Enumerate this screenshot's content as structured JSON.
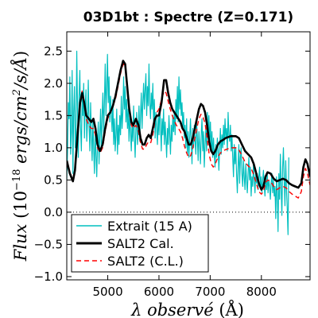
{
  "chart_data": {
    "type": "line",
    "title": "03D1bt : Spectre (Z=0.171)",
    "xlabel_parts": [
      "λ ",
      "observé",
      " (Å)"
    ],
    "ylabel_parts": [
      "Flux ",
      "(10",
      "−18",
      " ",
      "ergs/cm",
      "2",
      "/s/Å",
      ")"
    ],
    "xlim": [
      4200,
      8950
    ],
    "ylim": [
      -1.05,
      2.8
    ],
    "xticks": [
      5000,
      6000,
      7000,
      8000
    ],
    "yticks": [
      -1.0,
      -0.5,
      0.0,
      0.5,
      1.0,
      1.5,
      2.0,
      2.5
    ],
    "ytick_labels": [
      "−1.0",
      "−0.5",
      "0.0",
      "0.5",
      "1.0",
      "1.5",
      "2.0",
      "2.5"
    ],
    "zero_line": {
      "y": 0.0,
      "style": "dotted",
      "color": "#000000"
    },
    "legend": {
      "placement": "lower-left",
      "entries": [
        {
          "label": "Extrait (15 A)",
          "color": "#00bfbf",
          "style": "solid"
        },
        {
          "label": "SALT2 Cal.",
          "color": "#000000",
          "style": "solid-thick"
        },
        {
          "label": "SALT2 (C.L.)",
          "color": "#ff0000",
          "style": "dashed"
        }
      ]
    },
    "series": [
      {
        "name": "Extrait (15 A)",
        "color": "#00bfbf",
        "x_start": 4200,
        "x_step": 15,
        "values": [
          0.5,
          0.95,
          1.7,
          1.45,
          2.1,
          0.9,
          1.25,
          2.2,
          0.6,
          1.55,
          1.95,
          1.0,
          1.2,
          2.5,
          1.6,
          0.85,
          1.8,
          2.2,
          1.3,
          0.95,
          1.75,
          1.5,
          2.0,
          1.15,
          1.65,
          1.9,
          1.1,
          1.4,
          2.05,
          1.35,
          0.95,
          1.7,
          1.2,
          0.8,
          1.45,
          1.0,
          0.6,
          1.3,
          0.9,
          0.55,
          1.05,
          1.4,
          0.75,
          1.2,
          1.6,
          0.95,
          1.5,
          1.85,
          1.2,
          1.7,
          2.3,
          1.5,
          1.95,
          2.45,
          1.7,
          2.1,
          1.4,
          1.8,
          1.55,
          1.25,
          1.75,
          1.05,
          1.45,
          0.95,
          1.2,
          1.6,
          0.9,
          1.35,
          1.05,
          1.5,
          1.2,
          1.8,
          1.3,
          1.55,
          2.1,
          1.6,
          1.95,
          1.4,
          1.75,
          1.3,
          1.6,
          1.1,
          1.5,
          1.25,
          0.95,
          1.4,
          1.1,
          1.65,
          1.2,
          0.85,
          1.3,
          1.55,
          1.05,
          1.25,
          1.65,
          1.1,
          1.5,
          1.85,
          1.3,
          1.7,
          2.0,
          1.6,
          1.9,
          2.15,
          1.5,
          1.95,
          1.65,
          2.3,
          1.7,
          1.45,
          1.85,
          1.6,
          2.0,
          1.4,
          1.75,
          1.15,
          1.55,
          1.3,
          1.05,
          1.5,
          1.2,
          1.65,
          1.35,
          0.95,
          1.45,
          1.2,
          1.6,
          1.05,
          1.4,
          1.15,
          0.85,
          1.3,
          1.05,
          1.5,
          1.2,
          0.9,
          1.35,
          1.1,
          1.5,
          1.25,
          1.55,
          1.2,
          1.75,
          1.45,
          1.95,
          1.4,
          2.1,
          1.6,
          1.9,
          1.5,
          1.7,
          1.3,
          1.55,
          1.15,
          1.35,
          1.0,
          1.45,
          0.9,
          1.25,
          0.85,
          1.15,
          1.45,
          1.1,
          0.75,
          1.3,
          1.0,
          1.35,
          1.1,
          0.9,
          1.4,
          1.15,
          0.8,
          1.25,
          1.05,
          0.75,
          1.2,
          1.45,
          0.95,
          1.25,
          0.7,
          1.05,
          1.3,
          0.95,
          1.55,
          1.2,
          1.5,
          1.1,
          1.4,
          0.95,
          1.25,
          0.85,
          1.15,
          0.9,
          0.7,
          1.05,
          0.85,
          1.15,
          0.95,
          0.65,
          1.0,
          1.3,
          0.9,
          1.2,
          1.0,
          1.35,
          1.05,
          1.45,
          1.15,
          1.3,
          0.95,
          1.55,
          1.2,
          1.1,
          1.35,
          0.95,
          1.2,
          0.85,
          0.55,
          1.05,
          0.75,
          1.0,
          0.6,
          0.3,
          0.7,
          1.05,
          0.45,
          0.85,
          1.0,
          0.6,
          0.4,
          0.8,
          0.55,
          0.35,
          0.75,
          0.5,
          0.3,
          0.6,
          0.85,
          0.5,
          0.7,
          0.25,
          0.55,
          0.4,
          0.75,
          0.5,
          0.3,
          0.65,
          0.45,
          0.6,
          0.35,
          0.55,
          0.7,
          0.4,
          0.55,
          0.3,
          0.5,
          0.65,
          0.4,
          0.25,
          0.55,
          0.35,
          0.6,
          0.3,
          0.5,
          0.4,
          0.2,
          0.45,
          0.6,
          0.3,
          0.5,
          0.25,
          0.4,
          -0.1,
          0.55,
          0.3,
          -0.3,
          0.6,
          0.2,
          0.9,
          0.4,
          -0.05,
          0.7,
          1.0,
          0.5,
          0.1,
          0.8,
          0.35,
          0.05,
          -0.35,
          0.85
        ]
      },
      {
        "name": "SALT2 Cal.",
        "color": "#000000",
        "points": [
          [
            4200,
            0.8
          ],
          [
            4260,
            0.6
          ],
          [
            4320,
            0.48
          ],
          [
            4360,
            0.65
          ],
          [
            4410,
            1.2
          ],
          [
            4460,
            1.7
          ],
          [
            4500,
            1.85
          ],
          [
            4540,
            1.7
          ],
          [
            4580,
            1.5
          ],
          [
            4630,
            1.45
          ],
          [
            4680,
            1.4
          ],
          [
            4720,
            1.45
          ],
          [
            4760,
            1.3
          ],
          [
            4800,
            1.05
          ],
          [
            4850,
            0.95
          ],
          [
            4900,
            1.05
          ],
          [
            4950,
            1.3
          ],
          [
            5000,
            1.5
          ],
          [
            5050,
            1.55
          ],
          [
            5100,
            1.65
          ],
          [
            5150,
            1.8
          ],
          [
            5200,
            2.0
          ],
          [
            5250,
            2.2
          ],
          [
            5300,
            2.35
          ],
          [
            5340,
            2.3
          ],
          [
            5380,
            1.95
          ],
          [
            5420,
            1.6
          ],
          [
            5460,
            1.4
          ],
          [
            5500,
            1.35
          ],
          [
            5550,
            1.45
          ],
          [
            5600,
            1.35
          ],
          [
            5640,
            1.15
          ],
          [
            5680,
            1.05
          ],
          [
            5720,
            1.05
          ],
          [
            5760,
            1.15
          ],
          [
            5800,
            1.2
          ],
          [
            5840,
            1.15
          ],
          [
            5880,
            1.3
          ],
          [
            5920,
            1.45
          ],
          [
            5960,
            1.5
          ],
          [
            6000,
            1.5
          ],
          [
            6050,
            1.7
          ],
          [
            6100,
            2.05
          ],
          [
            6140,
            2.05
          ],
          [
            6180,
            1.85
          ],
          [
            6220,
            1.7
          ],
          [
            6260,
            1.6
          ],
          [
            6300,
            1.55
          ],
          [
            6340,
            1.5
          ],
          [
            6380,
            1.45
          ],
          [
            6420,
            1.4
          ],
          [
            6460,
            1.3
          ],
          [
            6500,
            1.25
          ],
          [
            6540,
            1.15
          ],
          [
            6580,
            1.05
          ],
          [
            6620,
            1.05
          ],
          [
            6660,
            1.15
          ],
          [
            6700,
            1.3
          ],
          [
            6740,
            1.45
          ],
          [
            6780,
            1.6
          ],
          [
            6820,
            1.68
          ],
          [
            6860,
            1.65
          ],
          [
            6900,
            1.55
          ],
          [
            6940,
            1.35
          ],
          [
            6980,
            1.1
          ],
          [
            7020,
            0.95
          ],
          [
            7060,
            0.9
          ],
          [
            7100,
            0.95
          ],
          [
            7150,
            1.05
          ],
          [
            7200,
            1.1
          ],
          [
            7250,
            1.12
          ],
          [
            7300,
            1.15
          ],
          [
            7400,
            1.18
          ],
          [
            7500,
            1.18
          ],
          [
            7560,
            1.15
          ],
          [
            7620,
            1.05
          ],
          [
            7680,
            0.95
          ],
          [
            7740,
            0.9
          ],
          [
            7800,
            0.85
          ],
          [
            7850,
            0.75
          ],
          [
            7900,
            0.6
          ],
          [
            7950,
            0.45
          ],
          [
            8000,
            0.35
          ],
          [
            8040,
            0.4
          ],
          [
            8080,
            0.55
          ],
          [
            8120,
            0.62
          ],
          [
            8180,
            0.6
          ],
          [
            8240,
            0.52
          ],
          [
            8300,
            0.48
          ],
          [
            8360,
            0.5
          ],
          [
            8420,
            0.52
          ],
          [
            8480,
            0.5
          ],
          [
            8540,
            0.45
          ],
          [
            8600,
            0.42
          ],
          [
            8660,
            0.4
          ],
          [
            8720,
            0.38
          ],
          [
            8780,
            0.45
          ],
          [
            8820,
            0.7
          ],
          [
            8860,
            0.82
          ],
          [
            8900,
            0.75
          ],
          [
            8950,
            0.55
          ]
        ]
      },
      {
        "name": "SALT2 (C.L.)",
        "color": "#ff0000",
        "points": [
          [
            4200,
            0.75
          ],
          [
            4260,
            0.62
          ],
          [
            4320,
            0.5
          ],
          [
            4360,
            0.68
          ],
          [
            4410,
            1.2
          ],
          [
            4460,
            1.72
          ],
          [
            4500,
            1.88
          ],
          [
            4540,
            1.72
          ],
          [
            4580,
            1.45
          ],
          [
            4630,
            1.35
          ],
          [
            4680,
            1.3
          ],
          [
            4720,
            1.3
          ],
          [
            4760,
            1.2
          ],
          [
            4800,
            1.0
          ],
          [
            4850,
            0.92
          ],
          [
            4900,
            1.0
          ],
          [
            4950,
            1.25
          ],
          [
            5000,
            1.45
          ],
          [
            5050,
            1.55
          ],
          [
            5100,
            1.65
          ],
          [
            5150,
            1.75
          ],
          [
            5200,
            1.95
          ],
          [
            5250,
            2.15
          ],
          [
            5300,
            2.3
          ],
          [
            5340,
            2.28
          ],
          [
            5380,
            1.92
          ],
          [
            5420,
            1.55
          ],
          [
            5460,
            1.35
          ],
          [
            5500,
            1.3
          ],
          [
            5550,
            1.35
          ],
          [
            5600,
            1.25
          ],
          [
            5640,
            1.08
          ],
          [
            5680,
            0.98
          ],
          [
            5720,
            0.98
          ],
          [
            5760,
            1.05
          ],
          [
            5800,
            1.1
          ],
          [
            5840,
            1.08
          ],
          [
            5880,
            1.2
          ],
          [
            5920,
            1.4
          ],
          [
            5960,
            1.55
          ],
          [
            6000,
            1.6
          ],
          [
            6050,
            1.75
          ],
          [
            6100,
            1.88
          ],
          [
            6140,
            1.85
          ],
          [
            6180,
            1.72
          ],
          [
            6220,
            1.6
          ],
          [
            6260,
            1.5
          ],
          [
            6300,
            1.42
          ],
          [
            6340,
            1.35
          ],
          [
            6380,
            1.3
          ],
          [
            6420,
            1.25
          ],
          [
            6460,
            1.15
          ],
          [
            6500,
            1.02
          ],
          [
            6540,
            0.92
          ],
          [
            6580,
            0.85
          ],
          [
            6620,
            0.88
          ],
          [
            6660,
            1.0
          ],
          [
            6700,
            1.15
          ],
          [
            6740,
            1.3
          ],
          [
            6780,
            1.45
          ],
          [
            6820,
            1.52
          ],
          [
            6860,
            1.48
          ],
          [
            6900,
            1.38
          ],
          [
            6940,
            1.15
          ],
          [
            6980,
            0.9
          ],
          [
            7020,
            0.75
          ],
          [
            7060,
            0.7
          ],
          [
            7100,
            0.75
          ],
          [
            7150,
            0.85
          ],
          [
            7200,
            0.92
          ],
          [
            7250,
            0.95
          ],
          [
            7300,
            0.97
          ],
          [
            7400,
            1.0
          ],
          [
            7500,
            1.0
          ],
          [
            7560,
            0.97
          ],
          [
            7620,
            0.88
          ],
          [
            7680,
            0.78
          ],
          [
            7740,
            0.72
          ],
          [
            7800,
            0.68
          ],
          [
            7850,
            0.58
          ],
          [
            7900,
            0.45
          ],
          [
            7950,
            0.32
          ],
          [
            8000,
            0.28
          ],
          [
            8040,
            0.32
          ],
          [
            8080,
            0.45
          ],
          [
            8120,
            0.5
          ],
          [
            8180,
            0.48
          ],
          [
            8240,
            0.4
          ],
          [
            8300,
            0.35
          ],
          [
            8360,
            0.38
          ],
          [
            8420,
            0.4
          ],
          [
            8480,
            0.38
          ],
          [
            8540,
            0.32
          ],
          [
            8600,
            0.28
          ],
          [
            8660,
            0.25
          ],
          [
            8720,
            0.22
          ],
          [
            8780,
            0.32
          ],
          [
            8820,
            0.55
          ],
          [
            8860,
            0.68
          ],
          [
            8900,
            0.6
          ],
          [
            8950,
            0.42
          ]
        ]
      }
    ]
  }
}
